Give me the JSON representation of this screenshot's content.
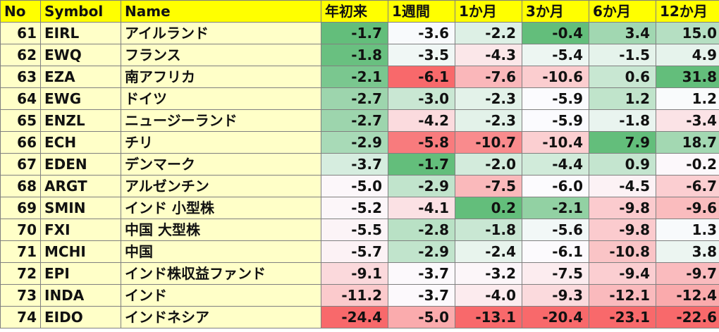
{
  "headers": [
    "No",
    "Symbol",
    "Name",
    "年初来",
    "1週間",
    "1か月",
    "3か月",
    "6か月",
    "12か月"
  ],
  "rows": [
    {
      "no": "61",
      "symbol": "EIRL",
      "name": "アイルランド",
      "values": [
        "-1.7",
        "-3.6",
        "-2.2",
        "-0.4",
        "3.4",
        "15.0"
      ]
    },
    {
      "no": "62",
      "symbol": "EWQ",
      "name": "フランス",
      "values": [
        "-1.8",
        "-3.5",
        "-4.3",
        "-5.4",
        "-1.5",
        "4.9"
      ]
    },
    {
      "no": "63",
      "symbol": "EZA",
      "name": "南アフリカ",
      "values": [
        "-2.1",
        "-6.1",
        "-7.6",
        "-10.6",
        "0.6",
        "31.8"
      ]
    },
    {
      "no": "64",
      "symbol": "EWG",
      "name": "ドイツ",
      "values": [
        "-2.7",
        "-3.0",
        "-2.3",
        "-5.9",
        "1.2",
        "1.2"
      ]
    },
    {
      "no": "65",
      "symbol": "ENZL",
      "name": "ニュージーランド",
      "values": [
        "-2.7",
        "-4.2",
        "-2.3",
        "-5.9",
        "-1.8",
        "-3.4"
      ]
    },
    {
      "no": "66",
      "symbol": "ECH",
      "name": "チリ",
      "values": [
        "-2.9",
        "-5.8",
        "-10.7",
        "-10.4",
        "7.9",
        "18.7"
      ]
    },
    {
      "no": "67",
      "symbol": "EDEN",
      "name": "デンマーク",
      "values": [
        "-3.7",
        "-1.7",
        "-2.0",
        "-4.4",
        "0.9",
        "-0.2"
      ]
    },
    {
      "no": "68",
      "symbol": "ARGT",
      "name": "アルゼンチン",
      "values": [
        "-5.0",
        "-2.9",
        "-7.5",
        "-6.0",
        "-4.5",
        "-6.7"
      ]
    },
    {
      "no": "69",
      "symbol": "SMIN",
      "name": "インド 小型株",
      "values": [
        "-5.2",
        "-4.1",
        "0.2",
        "-2.1",
        "-9.8",
        "-9.6"
      ]
    },
    {
      "no": "70",
      "symbol": "FXI",
      "name": "中国 大型株",
      "values": [
        "-5.5",
        "-2.8",
        "-1.8",
        "-5.6",
        "-9.8",
        "1.3"
      ]
    },
    {
      "no": "71",
      "symbol": "MCHI",
      "name": "中国",
      "values": [
        "-5.7",
        "-2.9",
        "-2.4",
        "-6.1",
        "-10.8",
        "3.8"
      ]
    },
    {
      "no": "72",
      "symbol": "EPI",
      "name": "インド株収益ファンド",
      "values": [
        "-9.1",
        "-3.7",
        "-3.2",
        "-7.5",
        "-9.4",
        "-9.7"
      ]
    },
    {
      "no": "73",
      "symbol": "INDA",
      "name": "インド",
      "values": [
        "-11.2",
        "-3.7",
        "-4.0",
        "-9.3",
        "-12.1",
        "-12.4"
      ]
    },
    {
      "no": "74",
      "symbol": "EIDO",
      "name": "インドネシア",
      "values": [
        "-24.4",
        "-5.0",
        "-13.1",
        "-20.4",
        "-23.1",
        "-22.6"
      ]
    }
  ],
  "colors": {
    "header": "#ffff00",
    "label_cells": "#ffffc8",
    "scale_negative": "#f8696b",
    "scale_neutral": "#fcfcff",
    "scale_positive": "#63be7b"
  }
}
